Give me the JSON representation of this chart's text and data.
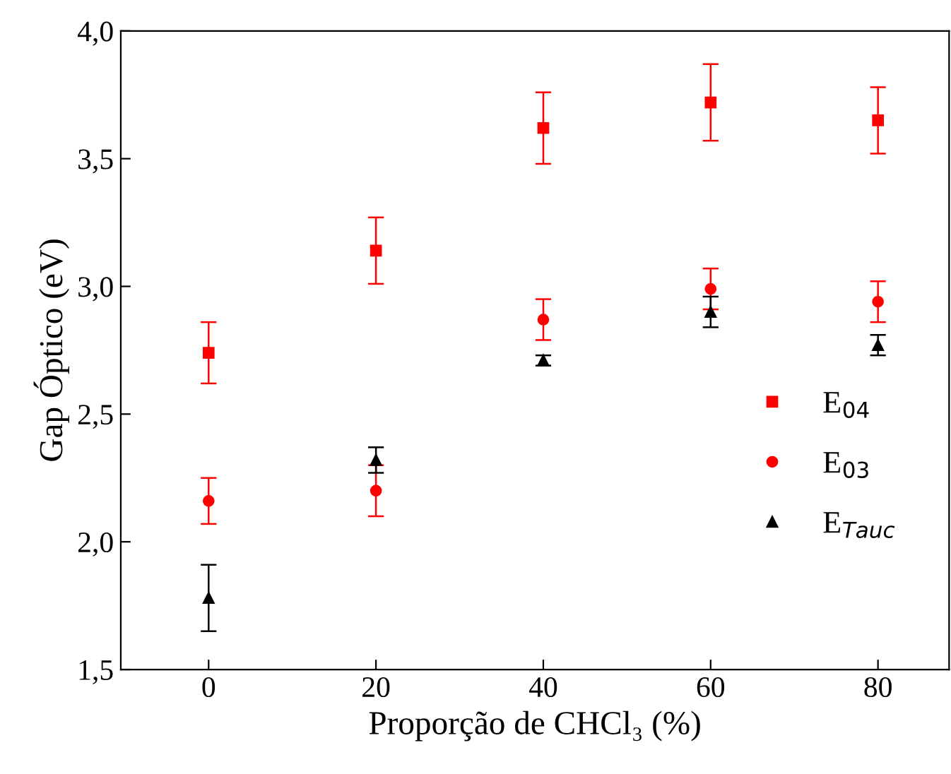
{
  "chart_data": {
    "type": "scatter",
    "xlabel": "Proporção de CHCl₃ (%)",
    "ylabel": "Gap Óptico (eV)",
    "x": [
      0,
      20,
      40,
      60,
      80
    ],
    "series": [
      {
        "name": "E$_{04}$",
        "color": "#ff0000",
        "marker": "square",
        "values": [
          2.74,
          3.14,
          3.62,
          3.72,
          3.65
        ],
        "errors": [
          0.12,
          0.13,
          0.14,
          0.15,
          0.13
        ]
      },
      {
        "name": "E$_{03}$",
        "color": "#ff0000",
        "marker": "circle",
        "values": [
          2.16,
          2.2,
          2.87,
          2.99,
          2.94
        ],
        "errors": [
          0.09,
          0.1,
          0.08,
          0.08,
          0.08
        ]
      },
      {
        "name": "E$_{Tauc}$",
        "color": "#000000",
        "marker": "triangle",
        "values": [
          1.78,
          2.32,
          2.71,
          2.9,
          2.77
        ],
        "errors": [
          0.13,
          0.05,
          0.02,
          0.06,
          0.04
        ]
      }
    ],
    "xlim": [
      -10.5,
      88.5
    ],
    "xticks": [
      0,
      20,
      40,
      60,
      80
    ],
    "ylim": [
      1.5,
      4.0
    ],
    "yticks": [
      {
        "value": 1.5,
        "label": "1,5"
      },
      {
        "value": 2.0,
        "label": "2,0"
      },
      {
        "value": 2.5,
        "label": "2,5"
      },
      {
        "value": 3.0,
        "label": "3,0"
      },
      {
        "value": 3.5,
        "label": "3,5"
      },
      {
        "value": 4.0,
        "label": "4,0"
      }
    ],
    "grid": false,
    "legend": "center right"
  }
}
